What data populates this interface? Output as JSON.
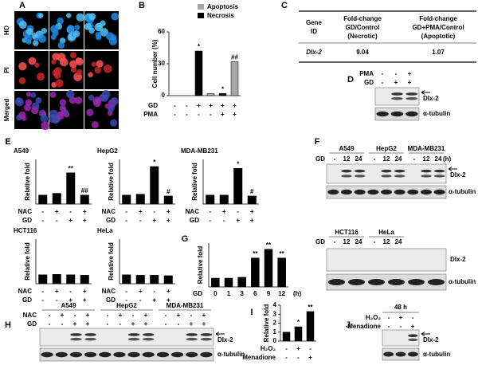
{
  "A": {
    "label": "A",
    "rows": [
      "HO",
      "PI",
      "Merged"
    ]
  },
  "B": {
    "label": "B",
    "y_label": "Cell number (%)",
    "ylim": [
      0,
      60
    ],
    "yticks": [
      0,
      30,
      60
    ],
    "series": [
      {
        "name": "Apoptosis",
        "color": "#a6a6a6",
        "values": [
          0,
          2,
          32
        ],
        "marks": [
          null,
          null,
          "##"
        ]
      },
      {
        "name": "Necrosis",
        "color": "#000000",
        "values": [
          0,
          42,
          2
        ],
        "marks": [
          null,
          "*",
          "*"
        ]
      }
    ],
    "conditions": [
      {
        "name": "GD",
        "signs": [
          "-",
          "-",
          "+",
          "+",
          "+",
          "+"
        ]
      },
      {
        "name": "PMA",
        "signs": [
          "-",
          "-",
          "-",
          "-",
          "+",
          "+"
        ]
      }
    ]
  },
  "C": {
    "label": "C",
    "header": [
      [
        "Gene",
        "ID"
      ],
      [
        "Fold-change",
        "GD/Control",
        "(Necrotic)"
      ],
      [
        "Fold-change",
        "GD+PMA/Control",
        "(Apoptotic)"
      ]
    ],
    "rows": [
      [
        "Dlx-2",
        "9.04",
        "1.07"
      ]
    ]
  },
  "D": {
    "label": "D",
    "conditions": [
      {
        "name": "PMA",
        "signs": [
          "-",
          "-",
          "+"
        ]
      },
      {
        "name": "GD",
        "signs": [
          "-",
          "+",
          "+"
        ]
      }
    ],
    "bands": [
      "Dlx-2",
      "α-tubulin"
    ]
  },
  "E": {
    "label": "E",
    "y_label": "Relative fold",
    "ylim": [
      0,
      5
    ],
    "color": "#000000",
    "charts": [
      {
        "title": "A549",
        "values": [
          1,
          1.2,
          3.5,
          1
        ],
        "marks": [
          null,
          null,
          "**",
          "##"
        ]
      },
      {
        "title": "HepG2",
        "values": [
          1,
          1.1,
          4.2,
          0.9
        ],
        "marks": [
          null,
          null,
          "*",
          "#"
        ]
      },
      {
        "title": "MDA-MB231",
        "values": [
          1,
          1,
          4,
          0.9
        ],
        "marks": [
          null,
          null,
          "*",
          "#"
        ]
      },
      {
        "title": "HCT116",
        "values": [
          1,
          1.05,
          1,
          0.95
        ],
        "marks": [
          null,
          null,
          null,
          null
        ]
      },
      {
        "title": "HeLa",
        "values": [
          1,
          0.95,
          0.95,
          0.9
        ],
        "marks": [
          null,
          null,
          null,
          null
        ]
      }
    ],
    "conditions": [
      {
        "name": "NAC",
        "signs": [
          "-",
          "+",
          "-",
          "+"
        ]
      },
      {
        "name": "GD",
        "signs": [
          "-",
          "-",
          "+",
          "+"
        ]
      }
    ]
  },
  "F": {
    "label": "F",
    "groups_top": [
      "A549",
      "HepG2",
      "MDA-MB231"
    ],
    "groups_bottom": [
      "HCT116",
      "HeLa"
    ],
    "condition": {
      "name": "GD",
      "signs": [
        "-",
        "12",
        "24"
      ],
      "unit": "(h)"
    },
    "bands": [
      "Dlx-2",
      "α-tubulin"
    ]
  },
  "G": {
    "label": "G",
    "y_label": "Relative fold",
    "ylim": [
      0,
      5
    ],
    "color": "#000000",
    "categories": [
      "0",
      "1",
      "3",
      "6",
      "9",
      "12"
    ],
    "values": [
      1,
      1,
      1.1,
      3.3,
      4.3,
      3.3
    ],
    "marks": [
      null,
      null,
      null,
      "**",
      "**",
      "**"
    ],
    "condition_name": "GD",
    "unit": "(h)"
  },
  "H": {
    "label": "H",
    "groups": [
      "A549",
      "HepG2",
      "MDA-MB231"
    ],
    "conditions": [
      {
        "name": "NAC",
        "signs": [
          "-",
          "+",
          "-",
          "+"
        ]
      },
      {
        "name": "GD",
        "signs": [
          "-",
          "-",
          "+",
          "+"
        ]
      }
    ],
    "bands": [
      "Dlx-2",
      "α-tubulin"
    ]
  },
  "I": {
    "label": "I",
    "y_label": "Relative fold",
    "ylim": [
      0,
      4
    ],
    "yticks": [
      0,
      1,
      2,
      3,
      4
    ],
    "color": "#000000",
    "values": [
      1,
      1.6,
      3.3
    ],
    "marks": [
      null,
      "*",
      "**"
    ],
    "conditions": [
      {
        "name": "H₂O₂",
        "signs": [
          "-",
          "+",
          "-"
        ]
      },
      {
        "name": "Menadione",
        "signs": [
          "-",
          "-",
          "+"
        ]
      }
    ]
  },
  "J": {
    "label": "J",
    "time": "48 h",
    "conditions": [
      {
        "name": "H₂O₂",
        "signs": [
          "-",
          "+",
          "-"
        ]
      },
      {
        "name": "Menadione",
        "signs": [
          "-",
          "-",
          "+"
        ]
      }
    ],
    "bands": [
      "Dlx-2",
      "α-tubulin"
    ]
  }
}
